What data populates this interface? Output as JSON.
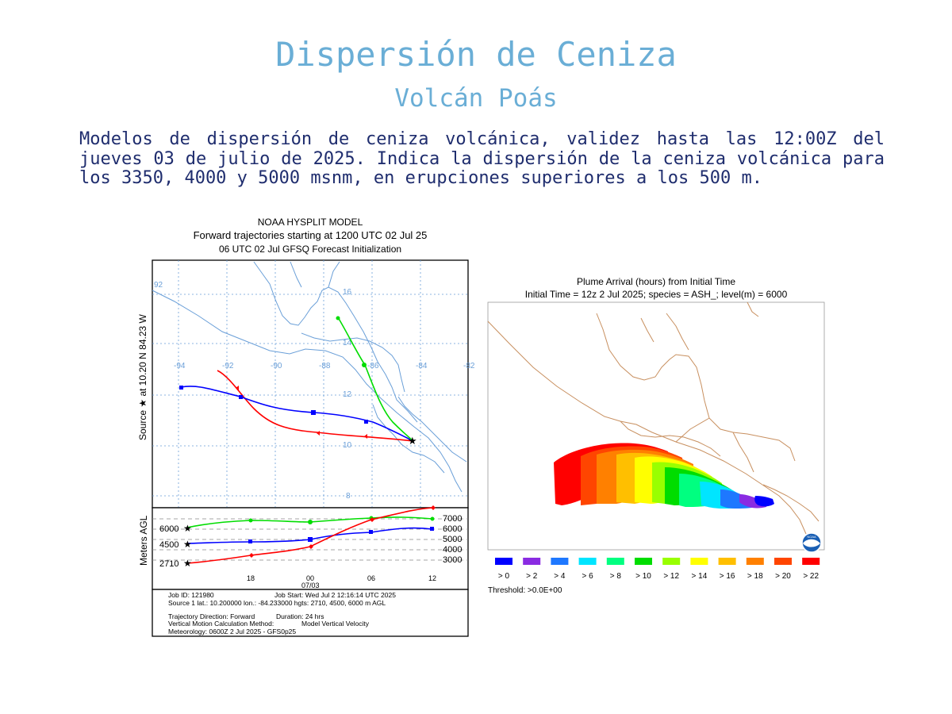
{
  "page": {
    "title": "Dispersión de Ceniza",
    "subtitle": "Volcán Poás",
    "description": "Modelos de dispersión de ceniza volcánica, validez hasta las 12:00Z del jueves 03 de julio de 2025. Indica la dispersión de la ceniza volcánica para los 3350, 4000 y 5000 msnm, en erupciones superiores a los 500 m."
  },
  "hysplit": {
    "title1": "NOAA HYSPLIT MODEL",
    "title2": "Forward trajectories starting at 1200 UTC 02 Jul 25",
    "title3": "06 UTC 02 Jul    GFSQ  Forecast Initialization",
    "side_label": "Source ★ at 10.20 N 84.23 W",
    "lon_labels": [
      "-94",
      "-92",
      "-90",
      "-88",
      "-86",
      "-84",
      "-82"
    ],
    "lat_labels": [
      "16",
      "14",
      "12",
      "10",
      "8"
    ],
    "extra_label": "92",
    "height_axis_label": "Meters AGL",
    "left_heights": [
      "6000",
      "4500",
      "2710"
    ],
    "right_heights": [
      "7000",
      "6000",
      "5000",
      "4000",
      "3000"
    ],
    "time_labels": [
      "18",
      "00",
      "06",
      "12"
    ],
    "date_label": "07/03",
    "info": {
      "line1a": "Job ID: 121980",
      "line1b": "Job Start: Wed Jul  2 12:16:14 UTC 2025",
      "line2": "Source 1 lat.: 10.200000  lon.: -84.233000  hgts: 2710, 4500, 6000 m AGL",
      "line3a": "Trajectory Direction: Forward",
      "line3b": "Duration: 24 hrs",
      "line4a": "Vertical Motion Calculation Method:",
      "line4b": "Model Vertical Velocity",
      "line5": "Meteorology: 0600Z 2 Jul 2025 - GFS0p25"
    },
    "series_colors": {
      "2710": "#ff0000",
      "4500": "#0000ff",
      "6000": "#00dd00"
    }
  },
  "plume": {
    "title1": "Plume Arrival (hours) from Initial Time",
    "title2": "Initial Time = 12z  2 Jul 2025;  species = ASH_;  level(m) =  6000",
    "legend": [
      {
        "label": "> 0",
        "color": "#0000ff"
      },
      {
        "label": "> 2",
        "color": "#8a2be2"
      },
      {
        "label": "> 4",
        "color": "#1e78ff"
      },
      {
        "label": "> 6",
        "color": "#00e5ff"
      },
      {
        "label": "> 8",
        "color": "#00ff80"
      },
      {
        "label": "> 10",
        "color": "#00dd00"
      },
      {
        "label": "> 12",
        "color": "#99ff00"
      },
      {
        "label": "> 14",
        "color": "#ffff00"
      },
      {
        "label": "> 16",
        "color": "#ffbf00"
      },
      {
        "label": "> 18",
        "color": "#ff8000"
      },
      {
        "label": "> 20",
        "color": "#ff4500"
      },
      {
        "label": "> 22",
        "color": "#ff0000"
      }
    ],
    "threshold": "Threshold: >0.0E+00"
  }
}
